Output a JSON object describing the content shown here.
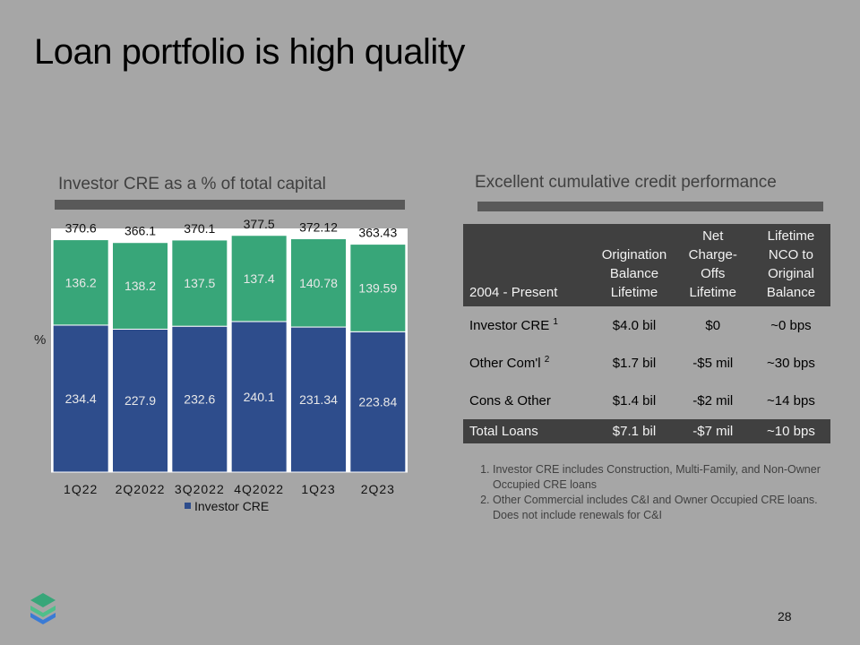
{
  "slide": {
    "title": "Loan portfolio is high quality",
    "page_number": "28"
  },
  "left_section": {
    "title": "Investor CRE as a % of total capital",
    "axis_label": "%",
    "legend": "Investor CRE"
  },
  "chart_data": {
    "type": "bar",
    "stacked": true,
    "categories": [
      "1Q22",
      "2Q2022",
      "3Q2022",
      "4Q2022",
      "1Q23",
      "2Q23"
    ],
    "series": [
      {
        "name": "Investor CRE",
        "color": "#2e4d8c",
        "values": [
          234.4,
          227.9,
          232.6,
          240.1,
          231.34,
          223.84
        ],
        "labels": [
          "234.4",
          "227.9",
          "232.6",
          "240.1",
          "231.34",
          "223.84"
        ]
      },
      {
        "color": "#38a679",
        "values": [
          136.2,
          138.2,
          137.5,
          137.4,
          140.78,
          139.59
        ],
        "labels": [
          "136.2",
          "138.2",
          "137.5",
          "137.4",
          "140.78",
          "139.59"
        ]
      }
    ],
    "totals": [
      370.6,
      366.1,
      370.1,
      377.5,
      372.12,
      363.43
    ],
    "total_labels": [
      "370.6",
      "366.1",
      "370.1",
      "377.5",
      "372.12",
      "363.43"
    ],
    "ylim": [
      0,
      400
    ],
    "legend_position": "bottom",
    "grid": false
  },
  "right_section": {
    "title": "Excellent cumulative credit performance",
    "table": {
      "headers": [
        [
          "2004 - Present"
        ],
        [
          "Origination",
          "Balance",
          "Lifetime"
        ],
        [
          "Net",
          "Charge-",
          "Offs",
          "Lifetime"
        ],
        [
          "Lifetime",
          "NCO to",
          "Original",
          "Balance"
        ]
      ],
      "rows": [
        {
          "label": "Investor CRE",
          "sup": "1",
          "cells": [
            "$4.0 bil",
            "$0",
            "~0 bps"
          ]
        },
        {
          "label": "Other Com'l",
          "sup": "2",
          "cells": [
            "$1.7 bil",
            "-$5 mil",
            "~30 bps"
          ]
        },
        {
          "label": "Cons & Other",
          "sup": "",
          "cells": [
            "$1.4 bil",
            "-$2 mil",
            "~14 bps"
          ]
        }
      ],
      "total": {
        "label": "Total Loans",
        "cells": [
          "$7.1 bil",
          "-$7 mil",
          "~10 bps"
        ]
      }
    },
    "notes": [
      "Investor CRE includes Construction, Multi-Family, and Non-Owner Occupied CRE loans",
      "Other Commercial includes C&I and Owner Occupied CRE loans. Does not include renewals for C&I"
    ]
  },
  "colors": {
    "background": "#a6a6a6",
    "investor_cre": "#2e4d8c",
    "other": "#38a679",
    "dark_band": "#404040"
  }
}
